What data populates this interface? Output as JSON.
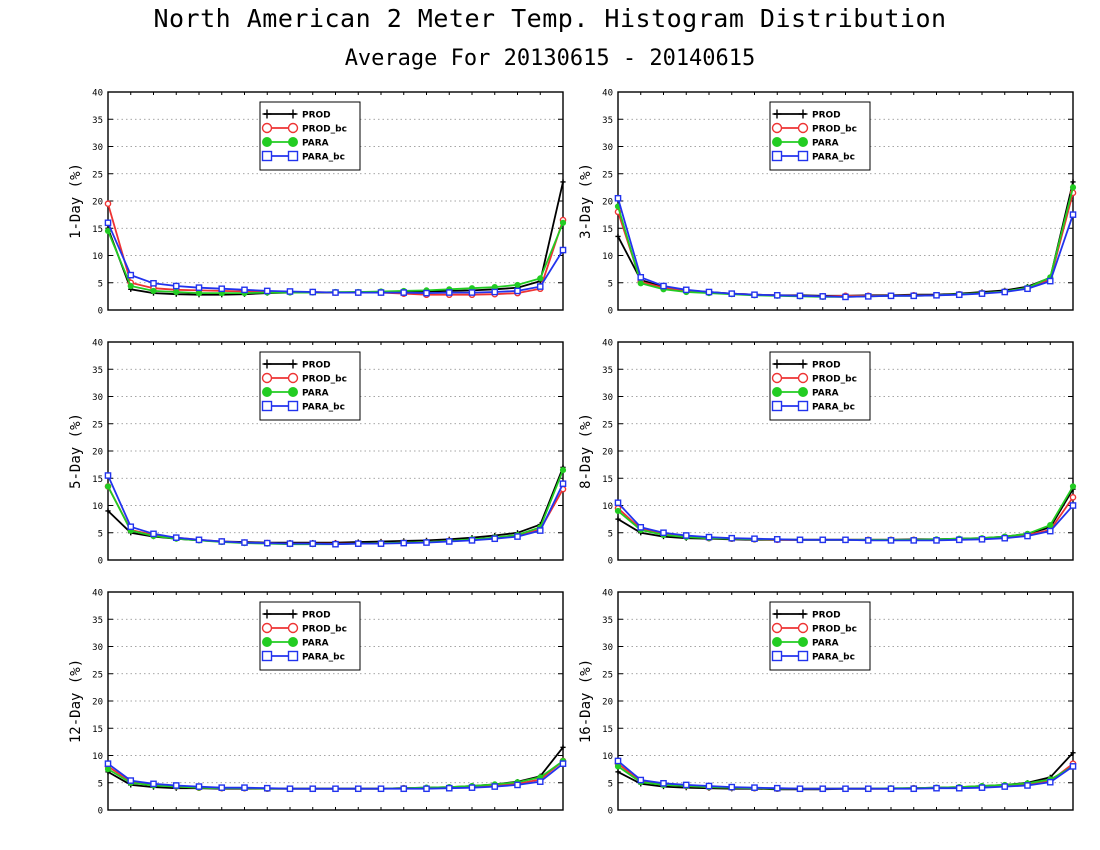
{
  "title": "North American 2 Meter Temp. Histogram Distribution",
  "subtitle": "Average For 20130615 - 20140615",
  "legend_labels": [
    "PROD",
    "PROD_bc",
    "PARA",
    "PARA_bc"
  ],
  "colors": {
    "PROD": "#000000",
    "PROD_bc": "#ee3333",
    "PARA": "#22cc22",
    "PARA_bc": "#2233ee"
  },
  "chart_data": [
    {
      "type": "line",
      "ylabel": "1-Day (%)",
      "ylim": [
        0,
        40
      ],
      "yticks": [
        0,
        5,
        10,
        15,
        20,
        25,
        30,
        35,
        40
      ],
      "grid": true,
      "legend_position": "top-center",
      "x": [
        1,
        2,
        3,
        4,
        5,
        6,
        7,
        8,
        9,
        10,
        11,
        12,
        13,
        14,
        15,
        16,
        17,
        18,
        19,
        20,
        21
      ],
      "series": [
        {
          "name": "PROD",
          "values": [
            15,
            3.8,
            3.1,
            2.9,
            2.8,
            2.8,
            2.9,
            3.1,
            3.2,
            3.2,
            3.2,
            3.3,
            3.3,
            3.4,
            3.4,
            3.5,
            3.6,
            3.8,
            4.1,
            5.3,
            23.5
          ]
        },
        {
          "name": "PROD_bc",
          "values": [
            19.5,
            5.0,
            4.0,
            3.7,
            3.6,
            3.5,
            3.4,
            3.4,
            3.3,
            3.3,
            3.2,
            3.2,
            3.2,
            3.0,
            2.8,
            2.8,
            2.8,
            2.9,
            3.1,
            3.9,
            16.5
          ]
        },
        {
          "name": "PARA",
          "values": [
            14.5,
            4.4,
            3.5,
            3.3,
            3.1,
            3.1,
            3.1,
            3.2,
            3.2,
            3.2,
            3.3,
            3.3,
            3.4,
            3.5,
            3.6,
            3.8,
            4.0,
            4.2,
            4.6,
            5.8,
            16.0
          ]
        },
        {
          "name": "PARA_bc",
          "values": [
            16,
            6.4,
            4.9,
            4.4,
            4.1,
            3.9,
            3.7,
            3.5,
            3.4,
            3.3,
            3.2,
            3.2,
            3.2,
            3.2,
            3.1,
            3.2,
            3.2,
            3.3,
            3.5,
            4.3,
            11.0
          ]
        }
      ]
    },
    {
      "type": "line",
      "ylabel": "3-Day (%)",
      "ylim": [
        0,
        40
      ],
      "yticks": [
        0,
        5,
        10,
        15,
        20,
        25,
        30,
        35,
        40
      ],
      "grid": true,
      "legend_position": "top-center",
      "x": [
        1,
        2,
        3,
        4,
        5,
        6,
        7,
        8,
        9,
        10,
        11,
        12,
        13,
        14,
        15,
        16,
        17,
        18,
        19,
        20,
        21
      ],
      "series": [
        {
          "name": "PROD",
          "values": [
            13.5,
            5.5,
            4.2,
            3.6,
            3.3,
            3.0,
            2.8,
            2.7,
            2.7,
            2.6,
            2.6,
            2.7,
            2.7,
            2.8,
            2.8,
            3.0,
            3.3,
            3.6,
            4.3,
            5.9,
            23.5
          ]
        },
        {
          "name": "PROD_bc",
          "values": [
            18,
            5.2,
            4.1,
            3.5,
            3.2,
            3.0,
            2.8,
            2.7,
            2.6,
            2.5,
            2.6,
            2.6,
            2.6,
            2.7,
            2.7,
            2.9,
            3.1,
            3.4,
            4.0,
            5.6,
            21.5
          ]
        },
        {
          "name": "PARA",
          "values": [
            19,
            4.9,
            3.8,
            3.3,
            3.1,
            2.9,
            2.7,
            2.6,
            2.5,
            2.4,
            2.4,
            2.5,
            2.6,
            2.6,
            2.7,
            2.9,
            3.1,
            3.4,
            4.1,
            6.0,
            22.5
          ]
        },
        {
          "name": "PARA_bc",
          "values": [
            20.5,
            6.0,
            4.4,
            3.7,
            3.3,
            3.0,
            2.8,
            2.7,
            2.6,
            2.5,
            2.4,
            2.5,
            2.6,
            2.6,
            2.7,
            2.8,
            3.0,
            3.3,
            3.9,
            5.3,
            17.5
          ]
        }
      ]
    },
    {
      "type": "line",
      "ylabel": "5-Day (%)",
      "ylim": [
        0,
        40
      ],
      "yticks": [
        0,
        5,
        10,
        15,
        20,
        25,
        30,
        35,
        40
      ],
      "grid": true,
      "legend_position": "top-center",
      "x": [
        1,
        2,
        3,
        4,
        5,
        6,
        7,
        8,
        9,
        10,
        11,
        12,
        13,
        14,
        15,
        16,
        17,
        18,
        19,
        20,
        21
      ],
      "series": [
        {
          "name": "PROD",
          "values": [
            9.0,
            5.0,
            4.3,
            3.9,
            3.6,
            3.4,
            3.3,
            3.2,
            3.2,
            3.2,
            3.2,
            3.3,
            3.4,
            3.5,
            3.6,
            3.8,
            4.1,
            4.5,
            5.0,
            6.5,
            17.0
          ]
        },
        {
          "name": "PROD_bc",
          "values": [
            13.5,
            5.5,
            4.6,
            4.1,
            3.7,
            3.4,
            3.2,
            3.1,
            3.0,
            3.0,
            3.0,
            3.0,
            3.1,
            3.2,
            3.3,
            3.5,
            3.7,
            4.0,
            4.5,
            5.6,
            13.0
          ]
        },
        {
          "name": "PARA",
          "values": [
            13.5,
            5.4,
            4.4,
            3.9,
            3.6,
            3.3,
            3.1,
            3.0,
            2.9,
            2.9,
            2.9,
            3.0,
            3.1,
            3.2,
            3.3,
            3.5,
            3.8,
            4.1,
            4.6,
            6.0,
            16.5
          ]
        },
        {
          "name": "PARA_bc",
          "values": [
            15.5,
            6.1,
            4.8,
            4.1,
            3.7,
            3.4,
            3.2,
            3.1,
            3.0,
            3.0,
            2.9,
            3.0,
            3.0,
            3.1,
            3.2,
            3.4,
            3.6,
            3.9,
            4.3,
            5.4,
            14.0
          ]
        }
      ]
    },
    {
      "type": "line",
      "ylabel": "8-Day (%)",
      "ylim": [
        0,
        40
      ],
      "yticks": [
        0,
        5,
        10,
        15,
        20,
        25,
        30,
        35,
        40
      ],
      "grid": true,
      "legend_position": "top-center",
      "x": [
        1,
        2,
        3,
        4,
        5,
        6,
        7,
        8,
        9,
        10,
        11,
        12,
        13,
        14,
        15,
        16,
        17,
        18,
        19,
        20,
        21
      ],
      "series": [
        {
          "name": "PROD",
          "values": [
            7.5,
            5.0,
            4.3,
            4.0,
            3.9,
            3.8,
            3.7,
            3.7,
            3.7,
            3.7,
            3.7,
            3.7,
            3.7,
            3.8,
            3.8,
            3.9,
            4.0,
            4.3,
            4.8,
            6.0,
            13.0
          ]
        },
        {
          "name": "PROD_bc",
          "values": [
            9.5,
            5.7,
            4.8,
            4.3,
            4.0,
            3.9,
            3.8,
            3.7,
            3.7,
            3.7,
            3.7,
            3.7,
            3.7,
            3.7,
            3.7,
            3.8,
            3.9,
            4.2,
            4.6,
            5.5,
            11.5
          ]
        },
        {
          "name": "PARA",
          "values": [
            9.0,
            5.5,
            4.6,
            4.2,
            4.0,
            3.9,
            3.8,
            3.8,
            3.7,
            3.7,
            3.7,
            3.7,
            3.7,
            3.7,
            3.8,
            3.9,
            4.0,
            4.3,
            4.8,
            6.4,
            13.5
          ]
        },
        {
          "name": "PARA_bc",
          "values": [
            10.5,
            6.0,
            5.0,
            4.5,
            4.2,
            4.0,
            3.9,
            3.8,
            3.7,
            3.7,
            3.7,
            3.6,
            3.6,
            3.6,
            3.6,
            3.7,
            3.8,
            4.0,
            4.4,
            5.3,
            10.0
          ]
        }
      ]
    },
    {
      "type": "line",
      "ylabel": "12-Day (%)",
      "ylim": [
        0,
        40
      ],
      "yticks": [
        0,
        5,
        10,
        15,
        20,
        25,
        30,
        35,
        40
      ],
      "grid": true,
      "legend_position": "top-center",
      "x": [
        1,
        2,
        3,
        4,
        5,
        6,
        7,
        8,
        9,
        10,
        11,
        12,
        13,
        14,
        15,
        16,
        17,
        18,
        19,
        20,
        21
      ],
      "series": [
        {
          "name": "PROD",
          "values": [
            7.0,
            4.6,
            4.2,
            4.0,
            4.0,
            3.9,
            3.9,
            3.9,
            3.9,
            3.9,
            3.9,
            3.9,
            3.9,
            4.0,
            4.1,
            4.2,
            4.4,
            4.7,
            5.2,
            6.2,
            11.5
          ]
        },
        {
          "name": "PROD_bc",
          "values": [
            8.0,
            5.2,
            4.6,
            4.3,
            4.1,
            4.0,
            4.0,
            3.9,
            3.9,
            3.9,
            3.9,
            3.9,
            3.9,
            4.0,
            4.0,
            4.1,
            4.3,
            4.5,
            4.8,
            5.6,
            9.0
          ]
        },
        {
          "name": "PARA",
          "values": [
            7.5,
            5.0,
            4.5,
            4.3,
            4.1,
            4.0,
            4.0,
            3.9,
            3.9,
            3.9,
            3.9,
            3.9,
            3.9,
            4.0,
            4.1,
            4.2,
            4.4,
            4.7,
            5.1,
            6.0,
            9.0
          ]
        },
        {
          "name": "PARA_bc",
          "values": [
            8.5,
            5.4,
            4.8,
            4.5,
            4.3,
            4.1,
            4.1,
            4.0,
            3.9,
            3.9,
            3.9,
            3.9,
            3.9,
            3.9,
            3.9,
            4.0,
            4.1,
            4.3,
            4.6,
            5.2,
            8.5
          ]
        }
      ]
    },
    {
      "type": "line",
      "ylabel": "16-Day (%)",
      "ylim": [
        0,
        40
      ],
      "yticks": [
        0,
        5,
        10,
        15,
        20,
        25,
        30,
        35,
        40
      ],
      "grid": true,
      "legend_position": "top-center",
      "x": [
        1,
        2,
        3,
        4,
        5,
        6,
        7,
        8,
        9,
        10,
        11,
        12,
        13,
        14,
        15,
        16,
        17,
        18,
        19,
        20,
        21
      ],
      "series": [
        {
          "name": "PROD",
          "values": [
            7.0,
            4.8,
            4.3,
            4.1,
            4.0,
            3.9,
            3.9,
            3.8,
            3.8,
            3.8,
            3.9,
            3.9,
            3.9,
            4.0,
            4.1,
            4.2,
            4.4,
            4.6,
            5.0,
            6.0,
            10.5
          ]
        },
        {
          "name": "PROD_bc",
          "values": [
            8.5,
            5.3,
            4.7,
            4.4,
            4.2,
            4.1,
            4.0,
            3.9,
            3.9,
            3.9,
            3.9,
            3.9,
            3.9,
            4.0,
            4.0,
            4.1,
            4.2,
            4.4,
            4.7,
            5.3,
            8.5
          ]
        },
        {
          "name": "PARA",
          "values": [
            8.0,
            5.1,
            4.6,
            4.4,
            4.2,
            4.1,
            4.0,
            3.9,
            3.9,
            3.9,
            3.9,
            3.9,
            4.0,
            4.0,
            4.1,
            4.2,
            4.4,
            4.6,
            4.9,
            5.6,
            8.0
          ]
        },
        {
          "name": "PARA_bc",
          "values": [
            9.0,
            5.5,
            4.9,
            4.6,
            4.4,
            4.2,
            4.1,
            4.0,
            3.9,
            3.9,
            3.9,
            3.9,
            3.9,
            3.9,
            4.0,
            4.0,
            4.1,
            4.3,
            4.5,
            5.1,
            8.0
          ]
        }
      ]
    }
  ]
}
